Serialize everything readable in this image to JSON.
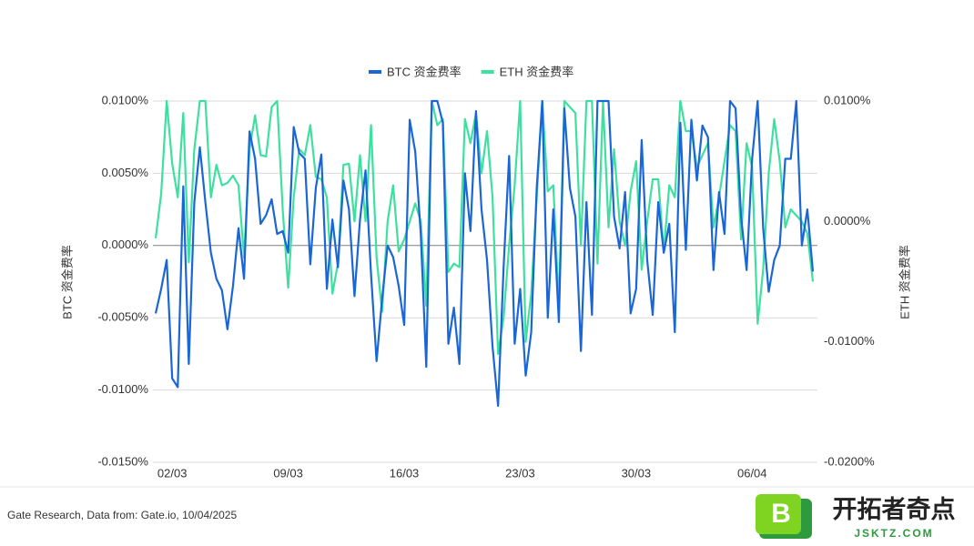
{
  "chart_data": {
    "type": "line",
    "categories": [
      null,
      null,
      null,
      "02/03",
      null,
      null,
      null,
      null,
      null,
      null,
      null,
      null,
      null,
      null,
      null,
      null,
      null,
      null,
      null,
      null,
      null,
      null,
      null,
      null,
      "09/03",
      null,
      null,
      null,
      null,
      null,
      null,
      null,
      null,
      null,
      null,
      null,
      null,
      null,
      null,
      null,
      null,
      null,
      null,
      null,
      null,
      "16/03",
      null,
      null,
      null,
      null,
      null,
      null,
      null,
      null,
      null,
      null,
      null,
      null,
      null,
      null,
      null,
      null,
      null,
      null,
      null,
      null,
      "23/03",
      null,
      null,
      null,
      null,
      null,
      null,
      null,
      null,
      null,
      null,
      null,
      null,
      null,
      null,
      null,
      null,
      null,
      null,
      null,
      null,
      "30/03",
      null,
      null,
      null,
      null,
      null,
      null,
      null,
      null,
      null,
      null,
      null,
      null,
      null,
      null,
      null,
      null,
      null,
      null,
      null,
      null,
      "06/04",
      null,
      null,
      null,
      null,
      null,
      null,
      null,
      null,
      null,
      null,
      null
    ],
    "series": [
      {
        "name": "BTC 资金费率",
        "color": "#1a66d6",
        "axis": "y",
        "values": [
          -0.0047,
          -0.003,
          -0.001,
          -0.0092,
          -0.0098,
          0.0041,
          -0.0082,
          0.003,
          0.0068,
          0.003,
          -0.0005,
          -0.0023,
          -0.0031,
          -0.0058,
          -0.0028,
          0.0012,
          -0.0023,
          0.0079,
          0.006,
          0.0015,
          0.0021,
          0.0032,
          0.0008,
          0.001,
          -0.0005,
          0.0082,
          0.0064,
          0.006,
          -0.0013,
          0.004,
          0.0063,
          -0.003,
          0.0018,
          -0.0015,
          0.0045,
          0.0025,
          -0.0035,
          0.0018,
          0.0052,
          -0.002,
          -0.008,
          -0.0037,
          0,
          -0.0008,
          -0.0028,
          -0.0055,
          0.0087,
          0.0065,
          0.0008,
          -0.0084,
          0.01,
          0.01,
          0.0085,
          -0.0068,
          -0.0043,
          -0.0082,
          0.005,
          0.001,
          0.0093,
          0.0025,
          -0.001,
          -0.007,
          -0.0111,
          -0.0015,
          0.0062,
          -0.0068,
          -0.003,
          -0.009,
          -0.006,
          0.004,
          0.01,
          -0.005,
          0.0025,
          -0.0053,
          0.0095,
          0.004,
          0.002,
          -0.0073,
          0.003,
          -0.0048,
          0.01,
          0.01,
          0.01,
          0.002,
          -0.0002,
          0.0037,
          -0.0047,
          -0.003,
          0.0073,
          -0.001,
          -0.0048,
          0.003,
          -0.0005,
          0.0015,
          -0.006,
          0.0085,
          -0.0003,
          0.0087,
          0.0045,
          0.0083,
          0.0075,
          -0.0017,
          0.0037,
          0.0008,
          0.01,
          0.0095,
          0.002,
          -0.0017,
          0.006,
          0.01,
          0.0012,
          -0.0032,
          -0.001,
          0,
          0.006,
          0.006,
          0.01,
          0,
          0.0025,
          -0.0018
        ]
      },
      {
        "name": "ETH 资金费率",
        "color": "#3ee0a0",
        "axis": "y2",
        "values": [
          -0.0014,
          0.0023,
          0.01,
          0.0048,
          0.002,
          0.009,
          -0.0034,
          0.006,
          0.01,
          0.01,
          0.002,
          0.0047,
          0.003,
          0.0032,
          0.0038,
          0.003,
          -0.003,
          0.006,
          0.0088,
          0.0055,
          0.0054,
          0.0095,
          0.01,
          0.001,
          -0.0055,
          0.002,
          0.006,
          0.0055,
          0.008,
          0.0037,
          0.0035,
          0.002,
          -0.006,
          -0.0035,
          0.0047,
          0.0048,
          0,
          0.0055,
          0,
          0.008,
          -0.003,
          -0.0075,
          0,
          0.003,
          -0.0025,
          -0.0015,
          0,
          0.0015,
          0,
          -0.007,
          0.01,
          0.008,
          0.0085,
          -0.0042,
          -0.0035,
          -0.0038,
          0.0085,
          0.0065,
          0.009,
          0.004,
          0.0075,
          0.002,
          -0.011,
          -0.008,
          -0.002,
          0.003,
          0.01,
          -0.01,
          -0.006,
          0.002,
          0.01,
          0.0025,
          0.003,
          -0.007,
          0.01,
          0.0095,
          0.009,
          -0.002,
          0.01,
          0.01,
          -0.0035,
          0.01,
          -0.0005,
          0.006,
          0,
          -0.002,
          0.0025,
          0.005,
          -0.004,
          0,
          0.0035,
          0.0035,
          -0.0025,
          0.003,
          0.002,
          0.01,
          0.0075,
          0.0075,
          0.0045,
          0.0055,
          0.0065,
          -0.0005,
          0.002,
          0.005,
          0.008,
          0.0075,
          -0.0015,
          0.0065,
          0.0045,
          -0.0085,
          -0.004,
          0.004,
          0.0085,
          0.005,
          -0.0005,
          0.001,
          0.0005,
          0,
          -0.001,
          -0.005
        ]
      }
    ],
    "ylabel": "BTC 资金费率",
    "y2label": "ETH 资金费率",
    "ylim": [
      -0.015,
      0.01
    ],
    "yticks": [
      {
        "value": 0.01,
        "label": "0.0100%"
      },
      {
        "value": 0.005,
        "label": "0.0050%"
      },
      {
        "value": 0,
        "label": "0.0000%"
      },
      {
        "value": -0.005,
        "label": "-0.0050%"
      },
      {
        "value": -0.01,
        "label": "-0.0100%"
      },
      {
        "value": -0.015,
        "label": "-0.0150%"
      }
    ],
    "y2lim": [
      -0.02,
      0.01
    ],
    "y2ticks": [
      {
        "value": 0.01,
        "label": "0.0100%"
      },
      {
        "value": 0,
        "label": "0.0000%"
      },
      {
        "value": -0.01,
        "label": "-0.0100%"
      },
      {
        "value": -0.02,
        "label": "-0.0200%"
      }
    ],
    "grid": true,
    "legend": "top"
  },
  "footer": {
    "source": "Gate Research, Data from: Gate.io, 10/04/2025",
    "logo_letter": "B",
    "logo_text": "开拓者奇点",
    "logo_url": "JSKTZ.COM"
  }
}
